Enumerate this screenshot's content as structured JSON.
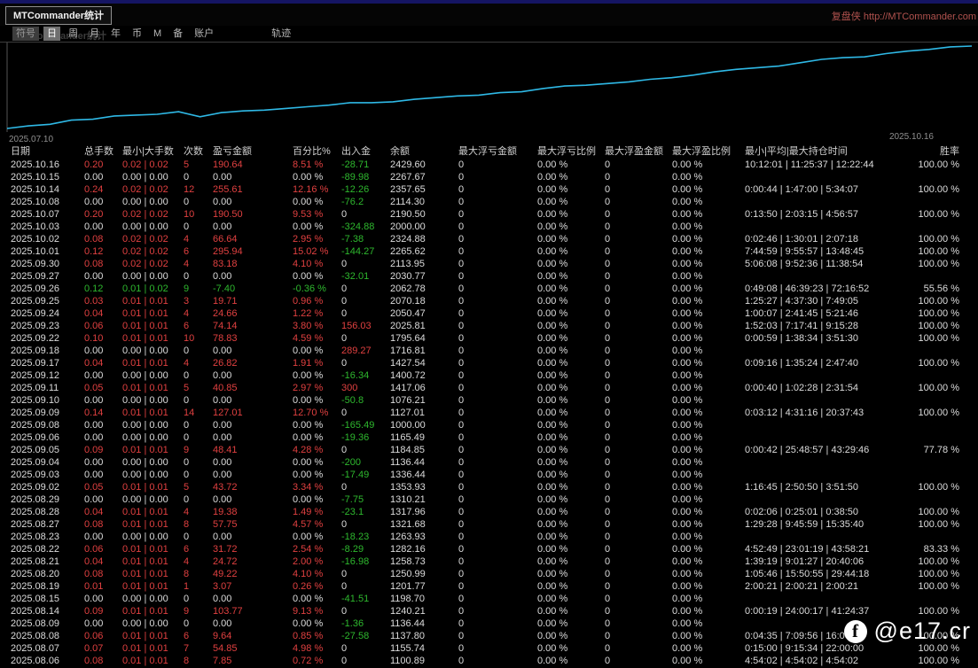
{
  "window": {
    "title": "MTCommander统计",
    "top_right_link": "复盘侠 http://MTCommander.com"
  },
  "toolbar": {
    "ghost_text": "MTCommander统计",
    "buttons": [
      {
        "label": "符号",
        "active": false
      },
      {
        "label": "日",
        "active": true
      },
      {
        "label": "周",
        "active": false
      },
      {
        "label": "月",
        "active": false
      },
      {
        "label": "年",
        "active": false
      },
      {
        "label": "币",
        "active": false
      },
      {
        "label": "M",
        "active": false
      },
      {
        "label": "备",
        "active": false
      },
      {
        "label": "账户",
        "active": false
      },
      {
        "label": "轨迹",
        "active": false,
        "gap_before": true
      }
    ]
  },
  "chart_data": {
    "type": "line",
    "title": "",
    "xlabel": "",
    "ylabel": "",
    "x_start_label": "2025.07.10",
    "x_end_label": "2025.10.16",
    "ylim": [
      1000,
      2430
    ],
    "grid": false,
    "legend": "none",
    "series": [
      {
        "name": "余额",
        "color": "#2fb9e6",
        "values": [
          1000,
          1044,
          1073,
          1145,
          1160,
          1217,
          1232,
          1246,
          1290,
          1203,
          1275,
          1304,
          1318,
          1347,
          1376,
          1405,
          1448,
          1448,
          1463,
          1506,
          1535,
          1564,
          1578,
          1621,
          1636,
          1694,
          1737,
          1751,
          1780,
          1809,
          1853,
          1881,
          1925,
          1982,
          2026,
          2055,
          2083,
          2141,
          2199,
          2228,
          2242,
          2300,
          2343,
          2372,
          2416,
          2430
        ]
      }
    ]
  },
  "table": {
    "headers": [
      "日期",
      "总手数",
      "最小|大手数",
      "次数",
      "盈亏金额",
      "百分比%",
      "出入金",
      "余额",
      "最大浮亏金额",
      "最大浮亏比例",
      "最大浮盈金额",
      "最大浮盈比例",
      "最小|平均|最大持仓时间",
      "胜率"
    ],
    "rows": [
      [
        "2025.10.16",
        "0.20",
        "0.02 | 0.02",
        "5",
        "190.64",
        "8.51 %",
        "-28.71",
        "2429.60",
        "0",
        "0.00 %",
        "0",
        "0.00 %",
        "10:12:01 | 11:25:37 | 12:22:44",
        "100.00 %"
      ],
      [
        "2025.10.15",
        "0.00",
        "0.00 | 0.00",
        "0",
        "0.00",
        "0.00 %",
        "-89.98",
        "2267.67",
        "0",
        "0.00 %",
        "0",
        "0.00 %",
        "",
        ""
      ],
      [
        "2025.10.14",
        "0.24",
        "0.02 | 0.02",
        "12",
        "255.61",
        "12.16 %",
        "-12.26",
        "2357.65",
        "0",
        "0.00 %",
        "0",
        "0.00 %",
        "0:00:44 | 1:47:00 | 5:34:07",
        "100.00 %"
      ],
      [
        "2025.10.08",
        "0.00",
        "0.00 | 0.00",
        "0",
        "0.00",
        "0.00 %",
        "-76.2",
        "2114.30",
        "0",
        "0.00 %",
        "0",
        "0.00 %",
        "",
        ""
      ],
      [
        "2025.10.07",
        "0.20",
        "0.02 | 0.02",
        "10",
        "190.50",
        "9.53 %",
        "0",
        "2190.50",
        "0",
        "0.00 %",
        "0",
        "0.00 %",
        "0:13:50 | 2:03:15 | 4:56:57",
        "100.00 %"
      ],
      [
        "2025.10.03",
        "0.00",
        "0.00 | 0.00",
        "0",
        "0.00",
        "0.00 %",
        "-324.88",
        "2000.00",
        "0",
        "0.00 %",
        "0",
        "0.00 %",
        "",
        ""
      ],
      [
        "2025.10.02",
        "0.08",
        "0.02 | 0.02",
        "4",
        "66.64",
        "2.95 %",
        "-7.38",
        "2324.88",
        "0",
        "0.00 %",
        "0",
        "0.00 %",
        "0:02:46 | 1:30:01 | 2:07:18",
        "100.00 %"
      ],
      [
        "2025.10.01",
        "0.12",
        "0.02 | 0.02",
        "6",
        "295.94",
        "15.02 %",
        "-144.27",
        "2265.62",
        "0",
        "0.00 %",
        "0",
        "0.00 %",
        "7:44:59 | 9:55:57 | 13:48:45",
        "100.00 %"
      ],
      [
        "2025.09.30",
        "0.08",
        "0.02 | 0.02",
        "4",
        "83.18",
        "4.10 %",
        "0",
        "2113.95",
        "0",
        "0.00 %",
        "0",
        "0.00 %",
        "5:06:08 | 9:52:36 | 11:38:54",
        "100.00 %"
      ],
      [
        "2025.09.27",
        "0.00",
        "0.00 | 0.00",
        "0",
        "0.00",
        "0.00 %",
        "-32.01",
        "2030.77",
        "0",
        "0.00 %",
        "0",
        "0.00 %",
        "",
        ""
      ],
      [
        "2025.09.26",
        "0.12",
        "0.01 | 0.02",
        "9",
        "-7.40",
        "-0.36 %",
        "0",
        "2062.78",
        "0",
        "0.00 %",
        "0",
        "0.00 %",
        "0:49:08 | 46:39:23 | 72:16:52",
        "55.56 %"
      ],
      [
        "2025.09.25",
        "0.03",
        "0.01 | 0.01",
        "3",
        "19.71",
        "0.96 %",
        "0",
        "2070.18",
        "0",
        "0.00 %",
        "0",
        "0.00 %",
        "1:25:27 | 4:37:30 | 7:49:05",
        "100.00 %"
      ],
      [
        "2025.09.24",
        "0.04",
        "0.01 | 0.01",
        "4",
        "24.66",
        "1.22 %",
        "0",
        "2050.47",
        "0",
        "0.00 %",
        "0",
        "0.00 %",
        "1:00:07 | 2:41:45 | 5:21:46",
        "100.00 %"
      ],
      [
        "2025.09.23",
        "0.06",
        "0.01 | 0.01",
        "6",
        "74.14",
        "3.80 %",
        "156.03",
        "2025.81",
        "0",
        "0.00 %",
        "0",
        "0.00 %",
        "1:52:03 | 7:17:41 | 9:15:28",
        "100.00 %"
      ],
      [
        "2025.09.22",
        "0.10",
        "0.01 | 0.01",
        "10",
        "78.83",
        "4.59 %",
        "0",
        "1795.64",
        "0",
        "0.00 %",
        "0",
        "0.00 %",
        "0:00:59 | 1:38:34 | 3:51:30",
        "100.00 %"
      ],
      [
        "2025.09.18",
        "0.00",
        "0.00 | 0.00",
        "0",
        "0.00",
        "0.00 %",
        "289.27",
        "1716.81",
        "0",
        "0.00 %",
        "0",
        "0.00 %",
        "",
        ""
      ],
      [
        "2025.09.17",
        "0.04",
        "0.01 | 0.01",
        "4",
        "26.82",
        "1.91 %",
        "0",
        "1427.54",
        "0",
        "0.00 %",
        "0",
        "0.00 %",
        "0:09:16 | 1:35:24 | 2:47:40",
        "100.00 %"
      ],
      [
        "2025.09.12",
        "0.00",
        "0.00 | 0.00",
        "0",
        "0.00",
        "0.00 %",
        "-16.34",
        "1400.72",
        "0",
        "0.00 %",
        "0",
        "0.00 %",
        "",
        ""
      ],
      [
        "2025.09.11",
        "0.05",
        "0.01 | 0.01",
        "5",
        "40.85",
        "2.97 %",
        "300",
        "1417.06",
        "0",
        "0.00 %",
        "0",
        "0.00 %",
        "0:00:40 | 1:02:28 | 2:31:54",
        "100.00 %"
      ],
      [
        "2025.09.10",
        "0.00",
        "0.00 | 0.00",
        "0",
        "0.00",
        "0.00 %",
        "-50.8",
        "1076.21",
        "0",
        "0.00 %",
        "0",
        "0.00 %",
        "",
        ""
      ],
      [
        "2025.09.09",
        "0.14",
        "0.01 | 0.01",
        "14",
        "127.01",
        "12.70 %",
        "0",
        "1127.01",
        "0",
        "0.00 %",
        "0",
        "0.00 %",
        "0:03:12 | 4:31:16 | 20:37:43",
        "100.00 %"
      ],
      [
        "2025.09.08",
        "0.00",
        "0.00 | 0.00",
        "0",
        "0.00",
        "0.00 %",
        "-165.49",
        "1000.00",
        "0",
        "0.00 %",
        "0",
        "0.00 %",
        "",
        ""
      ],
      [
        "2025.09.06",
        "0.00",
        "0.00 | 0.00",
        "0",
        "0.00",
        "0.00 %",
        "-19.36",
        "1165.49",
        "0",
        "0.00 %",
        "0",
        "0.00 %",
        "",
        ""
      ],
      [
        "2025.09.05",
        "0.09",
        "0.01 | 0.01",
        "9",
        "48.41",
        "4.28 %",
        "0",
        "1184.85",
        "0",
        "0.00 %",
        "0",
        "0.00 %",
        "0:00:42 | 25:48:57 | 43:29:46",
        "77.78 %"
      ],
      [
        "2025.09.04",
        "0.00",
        "0.00 | 0.00",
        "0",
        "0.00",
        "0.00 %",
        "-200",
        "1136.44",
        "0",
        "0.00 %",
        "0",
        "0.00 %",
        "",
        ""
      ],
      [
        "2025.09.03",
        "0.00",
        "0.00 | 0.00",
        "0",
        "0.00",
        "0.00 %",
        "-17.49",
        "1336.44",
        "0",
        "0.00 %",
        "0",
        "0.00 %",
        "",
        ""
      ],
      [
        "2025.09.02",
        "0.05",
        "0.01 | 0.01",
        "5",
        "43.72",
        "3.34 %",
        "0",
        "1353.93",
        "0",
        "0.00 %",
        "0",
        "0.00 %",
        "1:16:45 | 2:50:50 | 3:51:50",
        "100.00 %"
      ],
      [
        "2025.08.29",
        "0.00",
        "0.00 | 0.00",
        "0",
        "0.00",
        "0.00 %",
        "-7.75",
        "1310.21",
        "0",
        "0.00 %",
        "0",
        "0.00 %",
        "",
        ""
      ],
      [
        "2025.08.28",
        "0.04",
        "0.01 | 0.01",
        "4",
        "19.38",
        "1.49 %",
        "-23.1",
        "1317.96",
        "0",
        "0.00 %",
        "0",
        "0.00 %",
        "0:02:06 | 0:25:01 | 0:38:50",
        "100.00 %"
      ],
      [
        "2025.08.27",
        "0.08",
        "0.01 | 0.01",
        "8",
        "57.75",
        "4.57 %",
        "0",
        "1321.68",
        "0",
        "0.00 %",
        "0",
        "0.00 %",
        "1:29:28 | 9:45:59 | 15:35:40",
        "100.00 %"
      ],
      [
        "2025.08.23",
        "0.00",
        "0.00 | 0.00",
        "0",
        "0.00",
        "0.00 %",
        "-18.23",
        "1263.93",
        "0",
        "0.00 %",
        "0",
        "0.00 %",
        "",
        ""
      ],
      [
        "2025.08.22",
        "0.06",
        "0.01 | 0.01",
        "6",
        "31.72",
        "2.54 %",
        "-8.29",
        "1282.16",
        "0",
        "0.00 %",
        "0",
        "0.00 %",
        "4:52:49 | 23:01:19 | 43:58:21",
        "83.33 %"
      ],
      [
        "2025.08.21",
        "0.04",
        "0.01 | 0.01",
        "4",
        "24.72",
        "2.00 %",
        "-16.98",
        "1258.73",
        "0",
        "0.00 %",
        "0",
        "0.00 %",
        "1:39:19 | 9:01:27 | 20:40:06",
        "100.00 %"
      ],
      [
        "2025.08.20",
        "0.08",
        "0.01 | 0.01",
        "8",
        "49.22",
        "4.10 %",
        "0",
        "1250.99",
        "0",
        "0.00 %",
        "0",
        "0.00 %",
        "1:05:46 | 15:50:55 | 29:44:18",
        "100.00 %"
      ],
      [
        "2025.08.19",
        "0.01",
        "0.01 | 0.01",
        "1",
        "3.07",
        "0.26 %",
        "0",
        "1201.77",
        "0",
        "0.00 %",
        "0",
        "0.00 %",
        "2:00:21 | 2:00:21 | 2:00:21",
        "100.00 %"
      ],
      [
        "2025.08.15",
        "0.00",
        "0.00 | 0.00",
        "0",
        "0.00",
        "0.00 %",
        "-41.51",
        "1198.70",
        "0",
        "0.00 %",
        "0",
        "0.00 %",
        "",
        ""
      ],
      [
        "2025.08.14",
        "0.09",
        "0.01 | 0.01",
        "9",
        "103.77",
        "9.13 %",
        "0",
        "1240.21",
        "0",
        "0.00 %",
        "0",
        "0.00 %",
        "0:00:19 | 24:00:17 | 41:24:37",
        "100.00 %"
      ],
      [
        "2025.08.09",
        "0.00",
        "0.00 | 0.00",
        "0",
        "0.00",
        "0.00 %",
        "-1.36",
        "1136.44",
        "0",
        "0.00 %",
        "0",
        "0.00 %",
        "",
        ""
      ],
      [
        "2025.08.08",
        "0.06",
        "0.01 | 0.01",
        "6",
        "9.64",
        "0.85 %",
        "-27.58",
        "1137.80",
        "0",
        "0.00 %",
        "0",
        "0.00 %",
        "0:04:35 | 7:09:56 | 16:00:07",
        "100.00 %"
      ],
      [
        "2025.08.07",
        "0.07",
        "0.01 | 0.01",
        "7",
        "54.85",
        "4.98 %",
        "0",
        "1155.74",
        "0",
        "0.00 %",
        "0",
        "0.00 %",
        "0:15:00 | 9:15:34 | 22:00:00",
        "100.00 %"
      ],
      [
        "2025.08.06",
        "0.08",
        "0.01 | 0.01",
        "8",
        "7.85",
        "0.72 %",
        "0",
        "1100.89",
        "0",
        "0.00 %",
        "0",
        "0.00 %",
        "4:54:02 | 4:54:02 | 4:54:02",
        "100.00 %"
      ]
    ]
  },
  "watermark": {
    "icon": "facebook-icon",
    "icon_glyph": "f",
    "text": "@e17.cr"
  },
  "colors": {
    "profit": "#e04040",
    "loss": "#2eb82e",
    "neutral": "#dcdcdc",
    "header": "#cfcfcf",
    "accent_line": "#2fb9e6",
    "link_red": "#b1524e",
    "chart_axis": "#555555"
  }
}
